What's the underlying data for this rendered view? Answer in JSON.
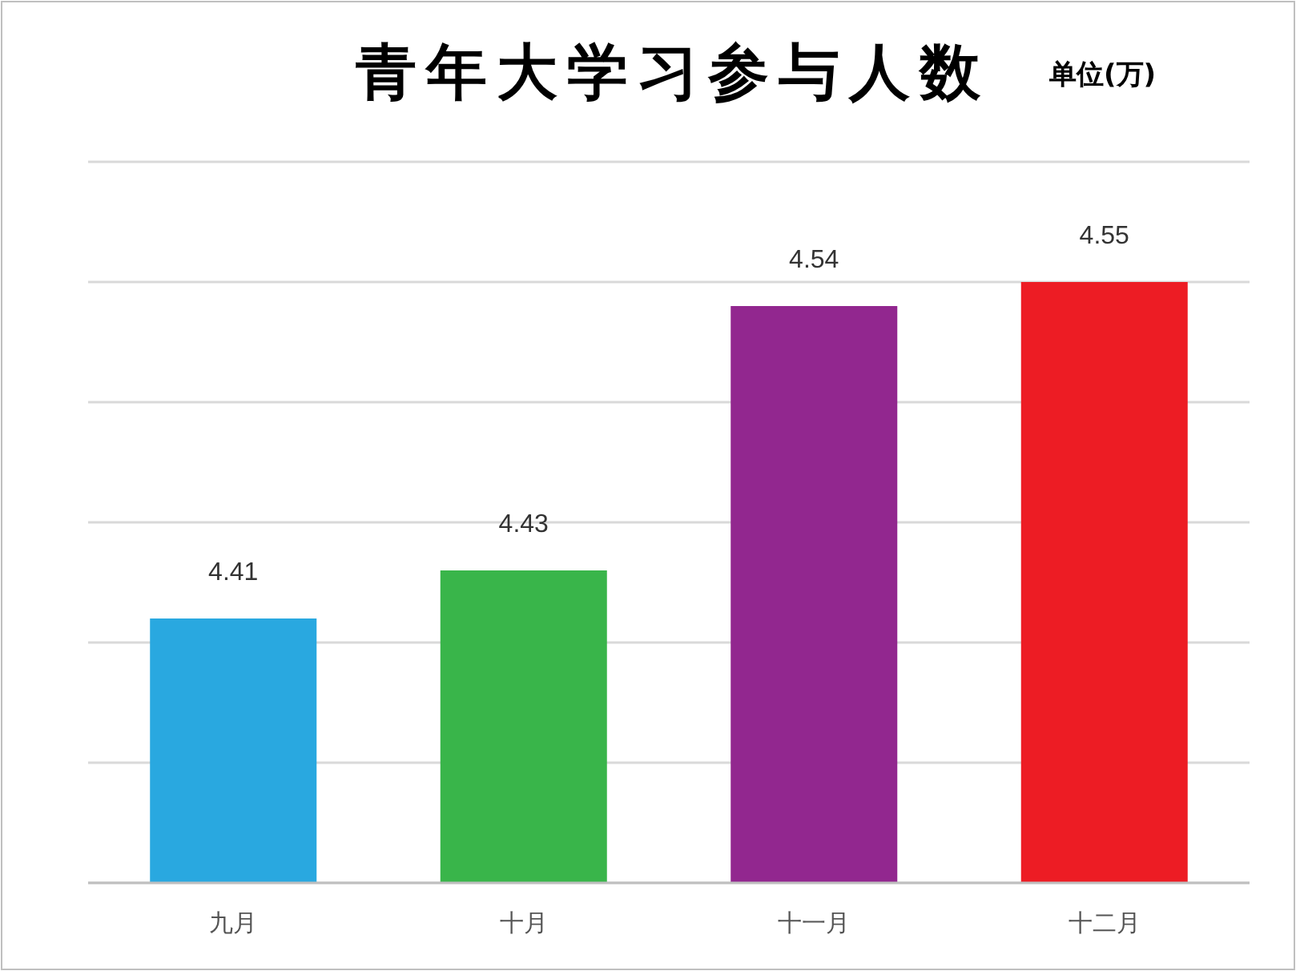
{
  "chart_data": {
    "type": "bar",
    "title": "青年大学习参与人数",
    "subtitle": "单位(万)",
    "categories": [
      "九月",
      "十月",
      "十一月",
      "十二月"
    ],
    "values": [
      4.41,
      4.43,
      4.54,
      4.55
    ],
    "colors": [
      "#29a8e0",
      "#39b54a",
      "#92278f",
      "#ed1c24"
    ],
    "ylim": [
      4.3,
      4.6
    ],
    "yticks": [
      {
        "value": 4.3,
        "label": null
      },
      {
        "value": 4.35,
        "label": null
      },
      {
        "value": 4.4,
        "label": null
      },
      {
        "value": 4.45,
        "label": null
      },
      {
        "value": 4.5,
        "label": null
      },
      {
        "value": 4.55,
        "label": null
      },
      {
        "value": 4.6,
        "label": null
      }
    ],
    "grid": "y",
    "tick_labels": "x",
    "data_labels": true
  }
}
